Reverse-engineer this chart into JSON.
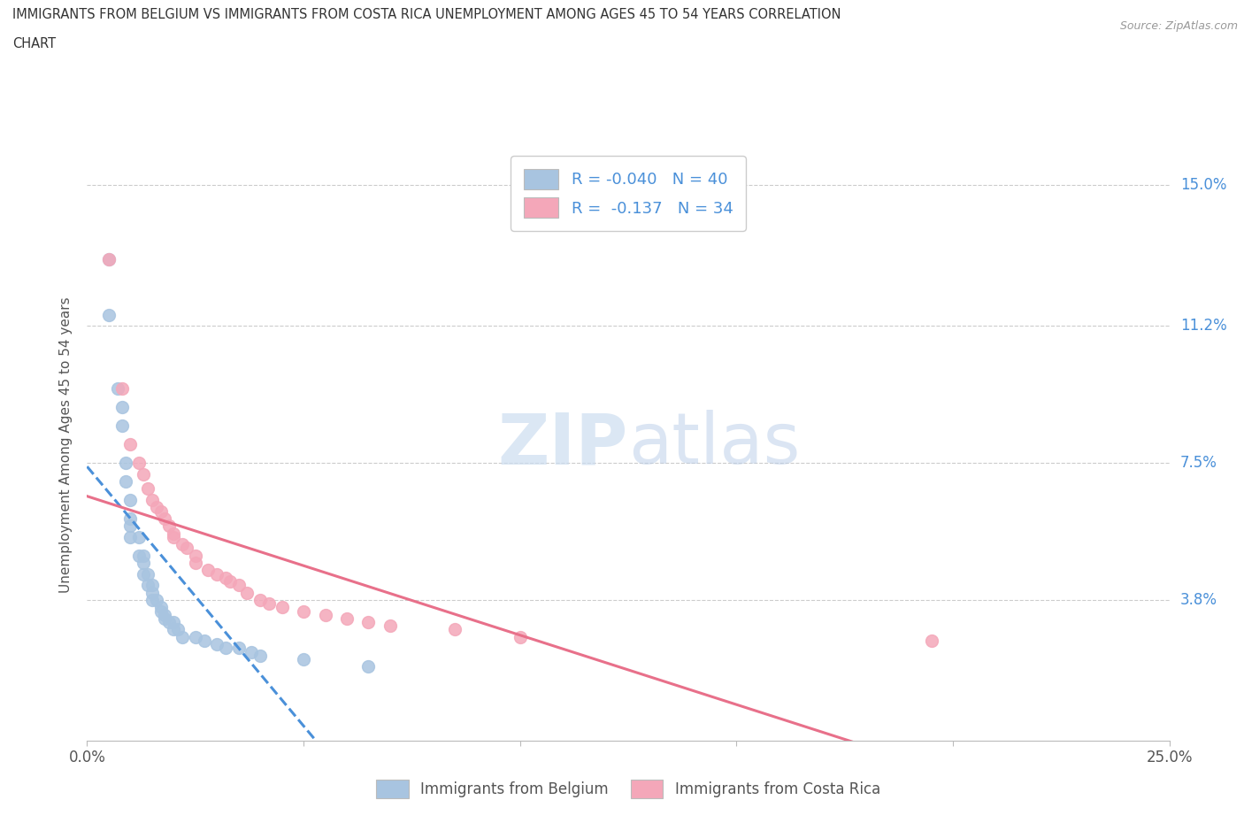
{
  "title_line1": "IMMIGRANTS FROM BELGIUM VS IMMIGRANTS FROM COSTA RICA UNEMPLOYMENT AMONG AGES 45 TO 54 YEARS CORRELATION",
  "title_line2": "CHART",
  "source_text": "Source: ZipAtlas.com",
  "ylabel": "Unemployment Among Ages 45 to 54 years",
  "xlim": [
    0.0,
    0.25
  ],
  "ylim": [
    0.0,
    0.16
  ],
  "xtick_positions": [
    0.0,
    0.05,
    0.1,
    0.15,
    0.2,
    0.25
  ],
  "xticklabels": [
    "0.0%",
    "",
    "",
    "",
    "",
    "25.0%"
  ],
  "ytick_positions": [
    0.038,
    0.075,
    0.112,
    0.15
  ],
  "ytick_labels": [
    "3.8%",
    "7.5%",
    "11.2%",
    "15.0%"
  ],
  "belgium_color": "#a8c4e0",
  "costa_rica_color": "#f4a7b9",
  "belgium_line_color": "#4a90d9",
  "costa_rica_line_color": "#e8708a",
  "watermark_color": "#d0dff0",
  "R_belgium": -0.04,
  "N_belgium": 40,
  "R_costa_rica": -0.137,
  "N_costa_rica": 34,
  "legend_label_belgium": "Immigrants from Belgium",
  "legend_label_costa_rica": "Immigrants from Costa Rica",
  "belgium_x": [
    0.005,
    0.005,
    0.007,
    0.008,
    0.008,
    0.009,
    0.009,
    0.01,
    0.01,
    0.01,
    0.01,
    0.012,
    0.012,
    0.013,
    0.013,
    0.013,
    0.014,
    0.014,
    0.015,
    0.015,
    0.015,
    0.016,
    0.017,
    0.017,
    0.018,
    0.018,
    0.019,
    0.02,
    0.02,
    0.021,
    0.022,
    0.025,
    0.027,
    0.03,
    0.032,
    0.035,
    0.038,
    0.04,
    0.05,
    0.065
  ],
  "belgium_y": [
    0.13,
    0.115,
    0.095,
    0.085,
    0.09,
    0.075,
    0.07,
    0.065,
    0.06,
    0.058,
    0.055,
    0.055,
    0.05,
    0.05,
    0.048,
    0.045,
    0.045,
    0.042,
    0.042,
    0.04,
    0.038,
    0.038,
    0.036,
    0.035,
    0.034,
    0.033,
    0.032,
    0.032,
    0.03,
    0.03,
    0.028,
    0.028,
    0.027,
    0.026,
    0.025,
    0.025,
    0.024,
    0.023,
    0.022,
    0.02
  ],
  "costa_rica_x": [
    0.005,
    0.008,
    0.01,
    0.012,
    0.013,
    0.014,
    0.015,
    0.016,
    0.017,
    0.018,
    0.019,
    0.02,
    0.02,
    0.022,
    0.023,
    0.025,
    0.025,
    0.028,
    0.03,
    0.032,
    0.033,
    0.035,
    0.037,
    0.04,
    0.042,
    0.045,
    0.05,
    0.055,
    0.06,
    0.065,
    0.07,
    0.085,
    0.1,
    0.195
  ],
  "costa_rica_y": [
    0.13,
    0.095,
    0.08,
    0.075,
    0.072,
    0.068,
    0.065,
    0.063,
    0.062,
    0.06,
    0.058,
    0.056,
    0.055,
    0.053,
    0.052,
    0.05,
    0.048,
    0.046,
    0.045,
    0.044,
    0.043,
    0.042,
    0.04,
    0.038,
    0.037,
    0.036,
    0.035,
    0.034,
    0.033,
    0.032,
    0.031,
    0.03,
    0.028,
    0.027
  ],
  "background_color": "#ffffff",
  "grid_color": "#cccccc"
}
